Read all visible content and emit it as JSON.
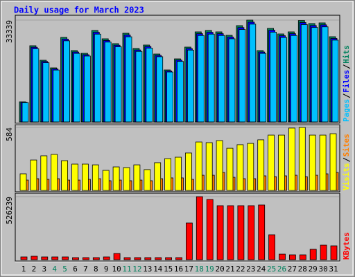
{
  "chart_data": [
    {
      "type": "bar",
      "title": "Daily usage for March 2023",
      "title_color": "#0000ff",
      "ylim": [
        0,
        33339
      ],
      "yticks": [
        33339
      ],
      "series": [
        {
          "name": "Hits",
          "color": "#00805c",
          "values": [
            6577,
            24948,
            20185,
            17690,
            27670,
            23360,
            22453,
            29938,
            27216,
            25628,
            29030,
            24041,
            25175,
            22226,
            17010,
            20639,
            24494,
            29484,
            29938,
            29484,
            28350,
            31525,
            33339,
            23360,
            30618,
            28804,
            29484,
            33200,
            32206,
            32432,
            27896
          ]
        },
        {
          "name": "Files",
          "color": "#0000ff",
          "values": [
            6450,
            24450,
            19780,
            17340,
            27120,
            22890,
            22000,
            29340,
            26670,
            25120,
            28450,
            23560,
            24670,
            21780,
            16670,
            20230,
            24000,
            28890,
            29340,
            28890,
            27780,
            30890,
            32670,
            22890,
            30010,
            28230,
            28890,
            32540,
            31560,
            31780,
            27340
          ]
        },
        {
          "name": "Pages",
          "color": "#00c0ff",
          "values": [
            6300,
            23950,
            19380,
            16980,
            26560,
            22430,
            21560,
            28740,
            26130,
            24600,
            27870,
            23080,
            24170,
            21340,
            16330,
            19810,
            23510,
            28300,
            28740,
            28300,
            27220,
            30260,
            32010,
            22430,
            29390,
            27650,
            28300,
            31870,
            30920,
            31130,
            26780
          ]
        }
      ]
    },
    {
      "type": "bar",
      "ylim": [
        0,
        584
      ],
      "yticks": [
        584
      ],
      "series": [
        {
          "name": "Sites",
          "color": "#ff8000",
          "values": [
            96,
            109,
            103,
            109,
            96,
            96,
            103,
            109,
            90,
            96,
            90,
            96,
            90,
            109,
            116,
            116,
            103,
            141,
            141,
            167,
            122,
            109,
            109,
            135,
            128,
            135,
            141,
            128,
            141,
            154,
            167
          ]
        },
        {
          "name": "Visits",
          "color": "#ffff00",
          "values": [
            154,
            282,
            321,
            334,
            276,
            244,
            244,
            237,
            186,
            218,
            212,
            237,
            193,
            257,
            295,
            308,
            347,
            449,
            443,
            462,
            391,
            424,
            436,
            469,
            513,
            513,
            578,
            584,
            513,
            513,
            526
          ]
        }
      ]
    },
    {
      "type": "bar",
      "ylim": [
        0,
        526239
      ],
      "yticks": [
        526239
      ],
      "x": [
        1,
        2,
        3,
        4,
        5,
        6,
        7,
        8,
        9,
        10,
        11,
        12,
        13,
        14,
        15,
        16,
        17,
        18,
        19,
        20,
        21,
        22,
        23,
        24,
        25,
        26,
        27,
        28,
        29,
        30,
        31
      ],
      "x_label_color": "#000000",
      "weekend_color": "#00805c",
      "weekend_days": [
        4,
        5,
        11,
        12,
        18,
        19,
        25,
        26
      ],
      "series": [
        {
          "name": "KBytes",
          "color": "#ff0000",
          "values": [
            23132,
            28915,
            23132,
            23132,
            23132,
            17349,
            17349,
            17349,
            23132,
            52047,
            17349,
            17349,
            17349,
            17349,
            17349,
            17349,
            306499,
            526239,
            503121,
            451074,
            451074,
            451074,
            451074,
            456857,
            208188,
            46264,
            40481,
            40481,
            86745,
            121443,
            115660
          ]
        }
      ]
    }
  ]
}
